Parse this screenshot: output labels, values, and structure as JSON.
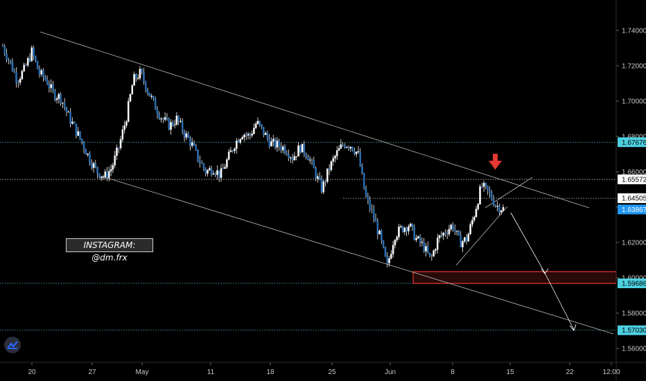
{
  "chart_data": {
    "type": "candlestick",
    "price_axis": {
      "ticks": [
        "1.74000",
        "1.72000",
        "1.70000",
        "1.68000",
        "1.66000",
        "1.64000",
        "1.62000",
        "1.60000",
        "1.58000",
        "1.56000"
      ],
      "ylim": [
        1.5545,
        1.7525
      ]
    },
    "time_axis": {
      "ticks": [
        "20",
        "27",
        "May",
        "11",
        "18",
        "25",
        "Jun",
        "8",
        "15",
        "22",
        "12:00"
      ]
    },
    "price_labels": [
      {
        "value": "1.67676",
        "bg": "#4dd0e1",
        "fg": "#000000"
      },
      {
        "value": "1.65572",
        "bg": "#ffffff",
        "fg": "#000000"
      },
      {
        "value": "1.64505",
        "bg": "#ffffff",
        "fg": "#000000"
      },
      {
        "value": "1.63867",
        "bg": "#2196f3",
        "fg": "#ffffff"
      },
      {
        "value": "1.59686",
        "bg": "#4dd0e1",
        "fg": "#000000"
      },
      {
        "value": "1.57030",
        "bg": "#4dd0e1",
        "fg": "#000000"
      }
    ],
    "horizontal_levels": [
      1.67676,
      1.65572,
      1.64505,
      1.59686,
      1.5703
    ],
    "zone": {
      "top": 1.6035,
      "bottom": 1.5968,
      "color": "#e53935"
    },
    "close_points": [
      1.731,
      1.722,
      1.712,
      1.718,
      1.728,
      1.716,
      1.712,
      1.704,
      1.702,
      1.692,
      1.684,
      1.676,
      1.667,
      1.66,
      1.657,
      1.662,
      1.674,
      1.69,
      1.712,
      1.716,
      1.706,
      1.697,
      1.69,
      1.686,
      1.69,
      1.682,
      1.676,
      1.667,
      1.66,
      1.662,
      1.658,
      1.667,
      1.676,
      1.682,
      1.68,
      1.688,
      1.682,
      1.676,
      1.675,
      1.673,
      1.668,
      1.674,
      1.67,
      1.66,
      1.65,
      1.662,
      1.67,
      1.676,
      1.675,
      1.67,
      1.646,
      1.636,
      1.623,
      1.606,
      1.624,
      1.628,
      1.63,
      1.622,
      1.618,
      1.61,
      1.622,
      1.626,
      1.63,
      1.62,
      1.622,
      1.636,
      1.652,
      1.648,
      1.641,
      1.639
    ],
    "colors": {
      "candle": "#2d6fb3",
      "wick": "#ffffff",
      "grid_level": "#4dd0e1",
      "trend_line": "#bdbdbd",
      "arrow": "#e53935"
    },
    "watermark": "INSTAGRAM: @dm.frx"
  }
}
